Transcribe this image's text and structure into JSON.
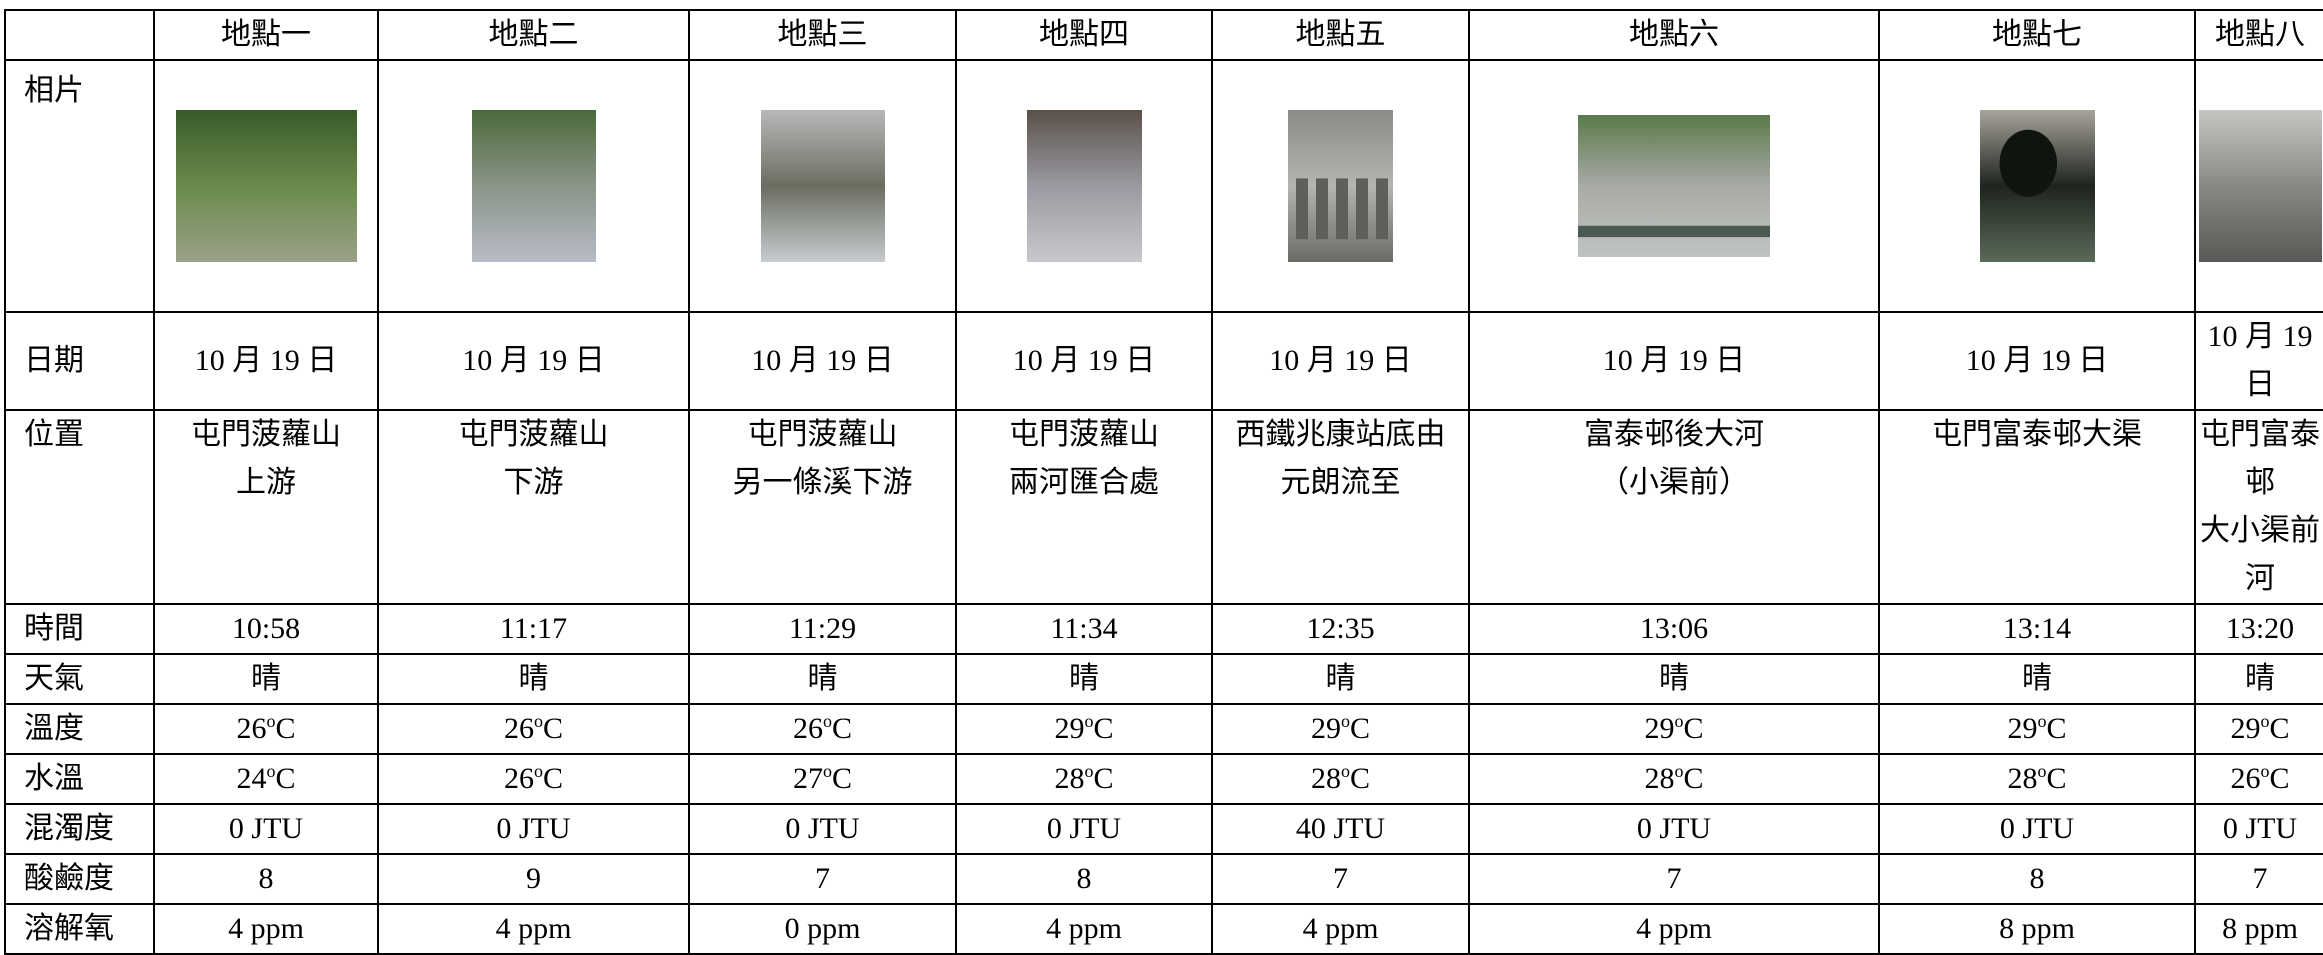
{
  "columns": [
    "地點一",
    "地點二",
    "地點三",
    "地點四",
    "地點五",
    "地點六",
    "地點七",
    "地點八"
  ],
  "row_labels": {
    "photo": "相片",
    "date": "日期",
    "location": "位置",
    "time": "時間",
    "weather": "天氣",
    "temperature": "溫度",
    "water_temp": "水溫",
    "turbidity": "混濁度",
    "ph": "酸鹼度",
    "dissolved_oxygen": "溶解氧"
  },
  "photos": [
    {
      "icon": "stream-upstream-photo-icon",
      "colors": [
        "#3a5a2a",
        "#6a8a4a",
        "#9aa28a"
      ]
    },
    {
      "icon": "stream-downstream-photo-icon",
      "colors": [
        "#4a6a3a",
        "#8a9488",
        "#b8bcc8"
      ]
    },
    {
      "icon": "stream-channel-photo-icon",
      "colors": [
        "#b8b8b8",
        "#6a6e60",
        "#c8ccd0"
      ]
    },
    {
      "icon": "river-junction-photo-icon",
      "colors": [
        "#5a5048",
        "#9a9aa2",
        "#c8c8cc"
      ]
    },
    {
      "icon": "railway-station-photo-icon",
      "colors": [
        "#8a8a86",
        "#b4b4b0",
        "#6a6a66"
      ]
    },
    {
      "icon": "channel-behind-estate-photo-icon",
      "colors": [
        "#5a7a4a",
        "#a8aaa6",
        "#c0c4c0"
      ]
    },
    {
      "icon": "culvert-outlet-photo-icon",
      "colors": [
        "#a8a49c",
        "#1e241e",
        "#5a6a58"
      ]
    },
    {
      "icon": "small-channel-photo-icon",
      "colors": [
        "#c8c6c2",
        "#8a8884",
        "#5a5856"
      ]
    }
  ],
  "dates": [
    "10 月 19 日",
    "10 月 19 日",
    "10 月 19 日",
    "10 月 19 日",
    "10 月 19 日",
    "10 月 19 日",
    "10 月 19 日",
    "10 月 19 日"
  ],
  "locations": [
    {
      "line1": "屯門菠蘿山",
      "line2": "上游"
    },
    {
      "line1": "屯門菠蘿山",
      "line2": "下游"
    },
    {
      "line1": "屯門菠蘿山",
      "line2": "另一條溪下游"
    },
    {
      "line1": "屯門菠蘿山",
      "line2": "兩河匯合處"
    },
    {
      "line1": "西鐵兆康站底由",
      "line2": "元朗流至"
    },
    {
      "line1": "富泰邨後大河",
      "line2": "（小渠前）"
    },
    {
      "line1": "屯門富泰邨大渠",
      "line2": ""
    },
    {
      "line1": "屯門富泰邨",
      "line2": "大小渠前河"
    }
  ],
  "times": [
    "10:58",
    "11:17",
    "11:29",
    "11:34",
    "12:35",
    "13:06",
    "13:14",
    "13:20"
  ],
  "weather": [
    "晴",
    "晴",
    "晴",
    "晴",
    "晴",
    "晴",
    "晴",
    "晴"
  ],
  "temperature": [
    "26",
    "26",
    "26",
    "29",
    "29",
    "29",
    "29",
    "29"
  ],
  "water_temp": [
    "24",
    "26",
    "27",
    "28",
    "28",
    "28",
    "28",
    "26"
  ],
  "degree_unit": "o",
  "celsius_letter": "C",
  "turbidity": [
    "0 JTU",
    "0 JTU",
    "0 JTU",
    "0 JTU",
    "40 JTU",
    "0 JTU",
    "0 JTU",
    "0 JTU"
  ],
  "ph": [
    "8",
    "9",
    "7",
    "8",
    "7",
    "7",
    "8",
    "7"
  ],
  "dissolved_oxygen": [
    "4 ppm",
    "4 ppm",
    "0 ppm",
    "4 ppm",
    "4 ppm",
    "4 ppm",
    "8 ppm",
    "8 ppm"
  ]
}
